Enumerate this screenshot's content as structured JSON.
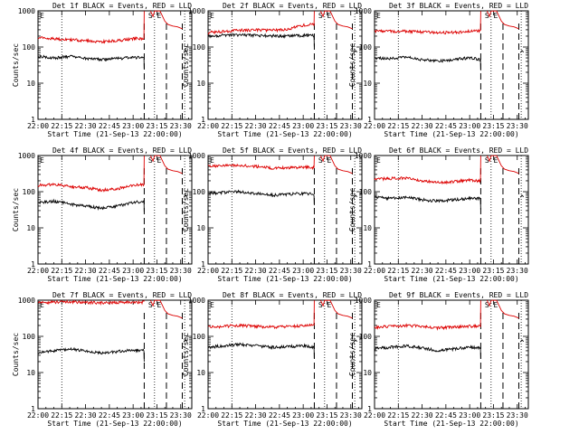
{
  "figure": {
    "xtick_labels": [
      "22:00",
      "22:15",
      "22:30",
      "22:45",
      "23:00",
      "23:15",
      "23:30"
    ],
    "ytick_labels": [
      "1",
      "10",
      "100",
      "1000"
    ],
    "xlabel": "Start Time (21-Sep-13 22:00:00)",
    "ylabel": "Counts/sec",
    "marker_left": "E",
    "marker_right": "S E",
    "legend_black": "BLACK = Events",
    "legend_red": "RED = LLD",
    "colors": {
      "events": "#000000",
      "lld": "#dd0000"
    }
  },
  "chart_data": [
    {
      "type": "line",
      "title": "Det 1f BLACK = Events, RED = LLD",
      "xlabel": "Start Time (21-Sep-13 22:00:00)",
      "ylabel": "Counts/sec",
      "xlim": [
        0,
        97
      ],
      "ylim": [
        1,
        1000
      ],
      "yscale": "log",
      "dotted_x": [
        15,
        73.5,
        92.5
      ],
      "dashed_x": [
        67,
        81,
        91
      ],
      "x": [
        0,
        10,
        20,
        30,
        40,
        50,
        60,
        67
      ],
      "series": [
        {
          "name": "Events",
          "color": "#000000",
          "values": [
            55,
            50,
            55,
            48,
            45,
            48,
            52,
            50
          ]
        },
        {
          "name": "LLD",
          "color": "#dd0000",
          "values": [
            180,
            170,
            160,
            150,
            140,
            150,
            170,
            175
          ]
        }
      ]
    },
    {
      "type": "line",
      "title": "Det 2f BLACK = Events, RED = LLD",
      "xlabel": "Start Time (21-Sep-13 22:00:00)",
      "ylabel": "Counts/sec",
      "xlim": [
        0,
        97
      ],
      "ylim": [
        1,
        1000
      ],
      "yscale": "log",
      "dotted_x": [
        15,
        73.5,
        92.5
      ],
      "dashed_x": [
        67,
        81,
        91
      ],
      "x": [
        0,
        10,
        20,
        30,
        40,
        50,
        60,
        67
      ],
      "series": [
        {
          "name": "Events",
          "color": "#000000",
          "values": [
            200,
            210,
            215,
            210,
            205,
            200,
            210,
            205
          ]
        },
        {
          "name": "LLD",
          "color": "#dd0000",
          "values": [
            250,
            270,
            290,
            300,
            290,
            310,
            400,
            420
          ]
        }
      ]
    },
    {
      "type": "line",
      "title": "Det 3f BLACK = Events, RED = LLD",
      "xlabel": "Start Time (21-Sep-13 22:00:00)",
      "ylabel": "Counts/sec",
      "xlim": [
        0,
        97
      ],
      "ylim": [
        1,
        1000
      ],
      "yscale": "log",
      "dotted_x": [
        15,
        73.5,
        92.5
      ],
      "dashed_x": [
        67,
        81,
        91
      ],
      "x": [
        0,
        10,
        20,
        30,
        40,
        50,
        60,
        67
      ],
      "series": [
        {
          "name": "Events",
          "color": "#000000",
          "values": [
            50,
            48,
            52,
            45,
            40,
            45,
            50,
            45
          ]
        },
        {
          "name": "LLD",
          "color": "#dd0000",
          "values": [
            280,
            270,
            275,
            260,
            250,
            255,
            270,
            280
          ]
        }
      ]
    },
    {
      "type": "line",
      "title": "Det 4f BLACK = Events, RED = LLD",
      "xlabel": "Start Time (21-Sep-13 22:00:00)",
      "ylabel": "Counts/sec",
      "xlim": [
        0,
        97
      ],
      "ylim": [
        1,
        1000
      ],
      "yscale": "log",
      "dotted_x": [
        15,
        73.5,
        92.5
      ],
      "dashed_x": [
        67,
        81,
        91
      ],
      "x": [
        0,
        10,
        20,
        30,
        40,
        50,
        60,
        67
      ],
      "series": [
        {
          "name": "Events",
          "color": "#000000",
          "values": [
            50,
            55,
            45,
            40,
            35,
            40,
            50,
            55
          ]
        },
        {
          "name": "LLD",
          "color": "#dd0000",
          "values": [
            150,
            160,
            140,
            130,
            110,
            120,
            150,
            160
          ]
        }
      ]
    },
    {
      "type": "line",
      "title": "Det 5f BLACK = Events, RED = LLD",
      "xlabel": "Start Time (21-Sep-13 22:00:00)",
      "ylabel": "Counts/sec",
      "xlim": [
        0,
        97
      ],
      "ylim": [
        1,
        1000
      ],
      "yscale": "log",
      "dotted_x": [
        15,
        73.5,
        92.5
      ],
      "dashed_x": [
        67,
        81,
        91
      ],
      "x": [
        0,
        10,
        20,
        30,
        40,
        50,
        60,
        67
      ],
      "series": [
        {
          "name": "Events",
          "color": "#000000",
          "values": [
            90,
            95,
            100,
            90,
            80,
            85,
            90,
            85
          ]
        },
        {
          "name": "LLD",
          "color": "#dd0000",
          "values": [
            500,
            520,
            540,
            500,
            450,
            460,
            480,
            470
          ]
        }
      ]
    },
    {
      "type": "line",
      "title": "Det 6f BLACK = Events, RED = LLD",
      "xlabel": "Start Time (21-Sep-13 22:00:00)",
      "ylabel": "Counts/sec",
      "xlim": [
        0,
        97
      ],
      "ylim": [
        1,
        1000
      ],
      "yscale": "log",
      "dotted_x": [
        15,
        73.5,
        92.5
      ],
      "dashed_x": [
        67,
        81,
        91
      ],
      "x": [
        0,
        10,
        20,
        30,
        40,
        50,
        60,
        67
      ],
      "series": [
        {
          "name": "Events",
          "color": "#000000",
          "values": [
            70,
            65,
            70,
            60,
            55,
            60,
            65,
            65
          ]
        },
        {
          "name": "LLD",
          "color": "#dd0000",
          "values": [
            220,
            230,
            240,
            200,
            180,
            190,
            210,
            200
          ]
        }
      ]
    },
    {
      "type": "line",
      "title": "Det 7f BLACK = Events, RED = LLD",
      "xlabel": "Start Time (21-Sep-13 22:00:00)",
      "ylabel": "Counts/sec",
      "xlim": [
        0,
        97
      ],
      "ylim": [
        1,
        1000
      ],
      "yscale": "log",
      "dotted_x": [
        15,
        73.5,
        92.5
      ],
      "dashed_x": [
        67,
        81,
        91
      ],
      "x": [
        0,
        10,
        20,
        30,
        40,
        50,
        60,
        67
      ],
      "series": [
        {
          "name": "Events",
          "color": "#000000",
          "values": [
            35,
            40,
            45,
            40,
            35,
            38,
            42,
            40
          ]
        },
        {
          "name": "LLD",
          "color": "#dd0000",
          "values": [
            850,
            880,
            900,
            870,
            850,
            860,
            880,
            870
          ]
        }
      ]
    },
    {
      "type": "line",
      "title": "Det 8f BLACK = Events, RED = LLD",
      "xlabel": "Start Time (21-Sep-13 22:00:00)",
      "ylabel": "Counts/sec",
      "xlim": [
        0,
        97
      ],
      "ylim": [
        1,
        1000
      ],
      "yscale": "log",
      "dotted_x": [
        15,
        73.5,
        92.5
      ],
      "dashed_x": [
        67,
        81,
        91
      ],
      "x": [
        0,
        10,
        20,
        30,
        40,
        50,
        60,
        67
      ],
      "series": [
        {
          "name": "Events",
          "color": "#000000",
          "values": [
            50,
            55,
            60,
            55,
            50,
            52,
            55,
            50
          ]
        },
        {
          "name": "LLD",
          "color": "#dd0000",
          "values": [
            180,
            190,
            200,
            190,
            180,
            185,
            200,
            200
          ]
        }
      ]
    },
    {
      "type": "line",
      "title": "Det 9f BLACK = Events, RED = LLD",
      "xlabel": "Start Time (21-Sep-13 22:00:00)",
      "ylabel": "Counts/sec",
      "xlim": [
        0,
        97
      ],
      "ylim": [
        1,
        1000
      ],
      "yscale": "log",
      "dotted_x": [
        15,
        73.5,
        92.5
      ],
      "dashed_x": [
        67,
        81,
        91
      ],
      "x": [
        0,
        10,
        20,
        30,
        40,
        50,
        60,
        67
      ],
      "series": [
        {
          "name": "Events",
          "color": "#000000",
          "values": [
            45,
            50,
            55,
            48,
            40,
            45,
            50,
            48
          ]
        },
        {
          "name": "LLD",
          "color": "#dd0000",
          "values": [
            180,
            190,
            200,
            190,
            170,
            180,
            190,
            200
          ]
        }
      ]
    }
  ]
}
